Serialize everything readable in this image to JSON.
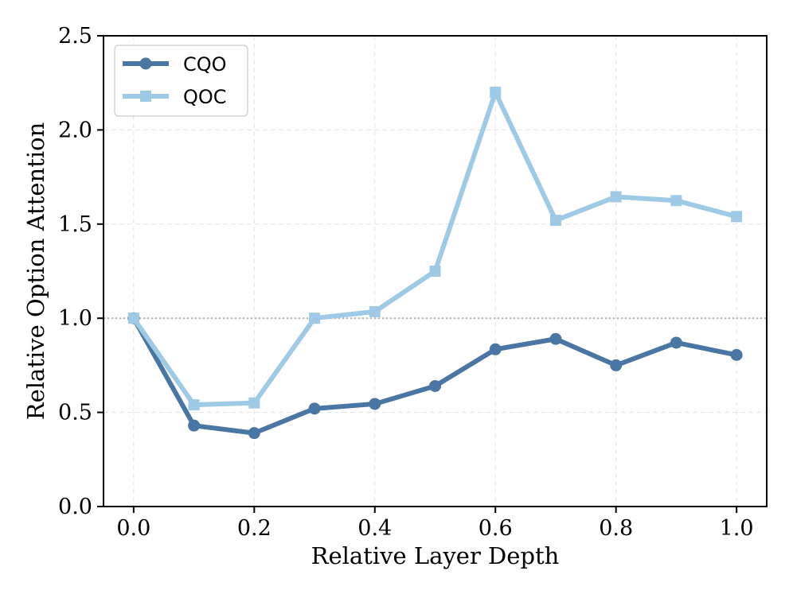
{
  "chart_data": {
    "type": "line",
    "title": "",
    "xlabel": "Relative Layer Depth",
    "ylabel": "Relative Option Attention",
    "xlim": [
      -0.05,
      1.05
    ],
    "ylim": [
      0.0,
      2.5
    ],
    "xticks": [
      0.0,
      0.2,
      0.4,
      0.6,
      0.8,
      1.0
    ],
    "xtick_labels": [
      "0.0",
      "0.2",
      "0.4",
      "0.6",
      "0.8",
      "1.0"
    ],
    "yticks": [
      0.0,
      0.5,
      1.0,
      1.5,
      2.0,
      2.5
    ],
    "ytick_labels": [
      "0.0",
      "0.5",
      "1.0",
      "1.5",
      "2.0",
      "2.5"
    ],
    "grid": true,
    "reference_line": 1.0,
    "legend_position": "top-left",
    "x": [
      0.0,
      0.1,
      0.2,
      0.3,
      0.4,
      0.5,
      0.6,
      0.7,
      0.8,
      0.9,
      1.0
    ],
    "series": [
      {
        "name": "CQO",
        "color": "#4a76a3",
        "marker": "circle",
        "values": [
          1.0,
          0.43,
          0.39,
          0.52,
          0.545,
          0.64,
          0.835,
          0.89,
          0.75,
          0.87,
          0.805
        ]
      },
      {
        "name": "QOC",
        "color": "#9ecae6",
        "marker": "square",
        "values": [
          1.0,
          0.54,
          0.55,
          1.0,
          1.035,
          1.25,
          2.2,
          1.52,
          1.645,
          1.625,
          1.54
        ]
      }
    ]
  }
}
